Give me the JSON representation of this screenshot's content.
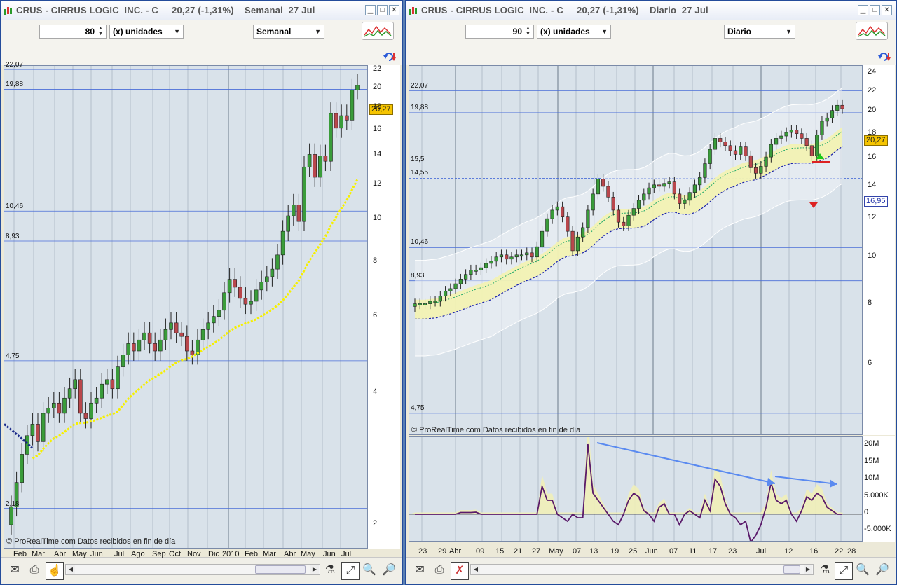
{
  "colors": {
    "up": "#3a9c3a",
    "down": "#b9474c",
    "accent": "#f5c400",
    "grid": "#4a6ed8"
  },
  "left": {
    "title": "CRUS - CIRRUS LOGIC  INC. - C     20,27 (-1,31%)    Semanal  27 Jul",
    "units_value": "80",
    "units_label": "(x) unidades",
    "period": "Semanal",
    "price_tag": "20,27",
    "credit": "© ProRealTime.com  Datos recibidos en fin de día",
    "y_ticks": [
      "22",
      "20",
      "18",
      "16",
      "14",
      "12",
      "10",
      "8",
      "6",
      "4",
      "2"
    ],
    "levels": [
      "22,07",
      "19,88",
      "10,46",
      "8,93",
      "4,75",
      "2,18"
    ],
    "x_labels": [
      "Feb",
      "Mar",
      "Abr",
      "May",
      "Jun",
      "Jul",
      "Ago",
      "Sep",
      "Oct",
      "Nov",
      "Dic",
      "2010",
      "Feb",
      "Mar",
      "Abr",
      "May",
      "Jun",
      "Jul"
    ]
  },
  "right": {
    "title": "CRUS - CIRRUS LOGIC  INC. - C     20,27 (-1,31%)    Diario  27 Jul",
    "units_value": "90",
    "units_label": "(x) unidades",
    "period": "Diario",
    "price_tag": "20,27",
    "price_tag2": "16,95",
    "credit": "© ProRealTime.com  Datos recibidos en fin de día",
    "y_ticks": [
      "24",
      "22",
      "20",
      "18",
      "16",
      "14",
      "12",
      "10",
      "8",
      "6"
    ],
    "levels": [
      "22,07",
      "19,88",
      "15,5",
      "14,55",
      "10,46",
      "8,93",
      "4,75"
    ],
    "vol_ticks": [
      "20M",
      "15M",
      "10M",
      "5.000K",
      "0",
      "-5.000K"
    ],
    "x_labels": [
      "23",
      "29",
      "Abr",
      "09",
      "15",
      "21",
      "27",
      "May",
      "07",
      "13",
      "19",
      "25",
      "Jun",
      "07",
      "11",
      "17",
      "23",
      "Jul",
      "12",
      "16",
      "22",
      "28"
    ]
  },
  "icons": [
    "window-icon",
    "minimize-icon",
    "maximize-icon",
    "close-icon",
    "undo-icon",
    "mail-icon",
    "print-icon",
    "cursor-icon",
    "indicator-icon",
    "zoom-fit-icon",
    "zoom-out-icon",
    "zoom-in-icon"
  ]
}
